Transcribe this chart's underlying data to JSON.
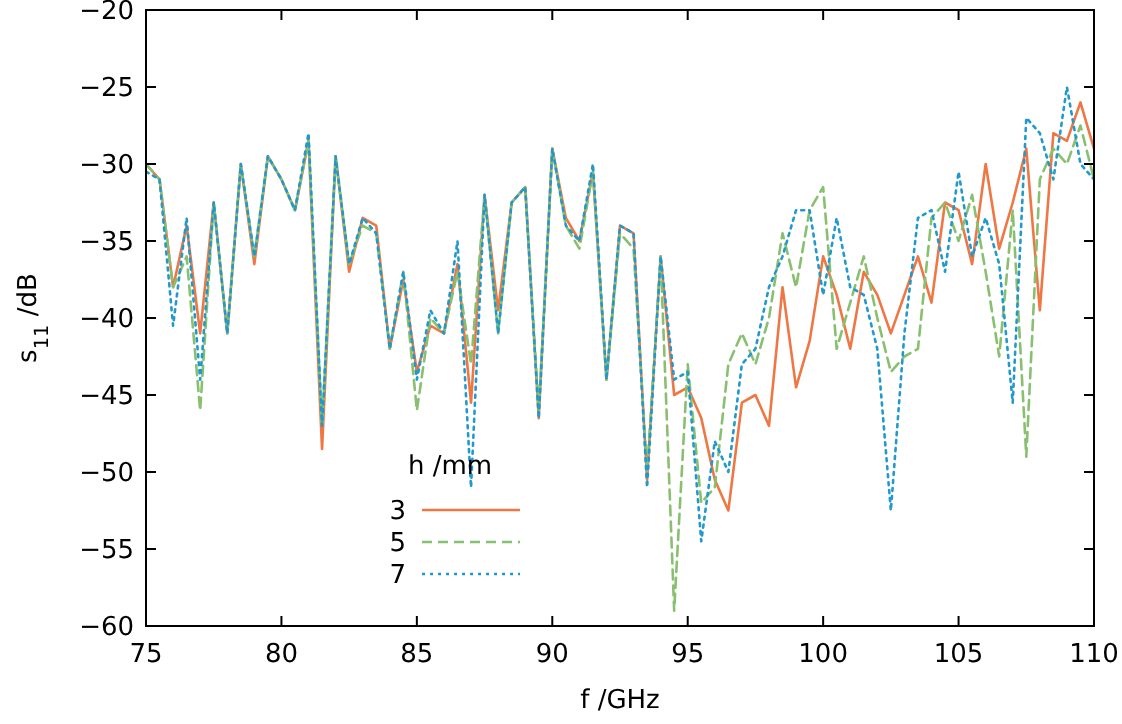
{
  "chart_data": {
    "type": "line",
    "xlabel": "f /GHz",
    "ylabel": "s$_{11}$ /dB",
    "legend_title": "h /mm",
    "legend": "bottom left",
    "grid": false,
    "x": [
      75,
      75.5,
      76,
      76.5,
      77,
      77.5,
      78,
      78.5,
      79,
      79.5,
      80,
      80.5,
      81,
      81.5,
      82,
      82.5,
      83,
      83.5,
      84,
      84.5,
      85,
      85.5,
      86,
      86.5,
      87,
      87.5,
      88,
      88.5,
      89,
      89.5,
      90,
      90.5,
      91,
      91.5,
      92,
      92.5,
      93,
      93.5,
      94,
      94.5,
      95,
      95.5,
      96,
      96.5,
      97,
      97.5,
      98,
      98.5,
      99,
      99.5,
      100,
      100.5,
      101,
      101.5,
      102,
      102.5,
      103,
      103.5,
      104,
      104.5,
      105,
      105.5,
      106,
      106.5,
      107,
      107.5,
      108,
      108.5,
      109,
      109.5,
      110
    ],
    "xlim": [
      75,
      110
    ],
    "xticks": [
      75,
      80,
      85,
      90,
      95,
      100,
      105,
      110
    ],
    "ylim": [
      -60,
      -20
    ],
    "yticks": [
      {
        "value": -60,
        "label": "−60"
      },
      {
        "value": -55,
        "label": "−55"
      },
      {
        "value": -50,
        "label": "−50"
      },
      {
        "value": -45,
        "label": "−45"
      },
      {
        "value": -40,
        "label": "−40"
      },
      {
        "value": -35,
        "label": "−35"
      },
      {
        "value": -30,
        "label": "−30"
      },
      {
        "value": -25,
        "label": "−25"
      },
      {
        "value": -20,
        "label": "−20"
      }
    ],
    "series": [
      {
        "name": "3",
        "color": "#ee7744",
        "line_style": "solid",
        "values": [
          -30,
          -31,
          -38,
          -34,
          -41,
          -32.5,
          -41,
          -30,
          -36.5,
          -29.5,
          -31,
          -33,
          -28.5,
          -48.5,
          -29.5,
          -37,
          -33.5,
          -34,
          -42,
          -37.5,
          -43.5,
          -40.5,
          -41,
          -36.5,
          -45.5,
          -32,
          -39.5,
          -32.5,
          -31.5,
          -46.5,
          -29,
          -33.5,
          -35,
          -30.5,
          -44,
          -34,
          -34.5,
          -50.5,
          -36,
          -45,
          -44.5,
          -46.5,
          -50.5,
          -52.5,
          -45.5,
          -45,
          -47,
          -38,
          -44.5,
          -41.5,
          -36,
          -38.5,
          -42,
          -37,
          -38.5,
          -41,
          -38.5,
          -36,
          -39,
          -32.5,
          -33,
          -36.5,
          -30,
          -35.5,
          -32.5,
          -29,
          -39.5,
          -28,
          -28.5,
          -26,
          -29
        ]
      },
      {
        "name": "5",
        "color": "#88c070",
        "line_style": "dashed",
        "values": [
          -30,
          -31,
          -38,
          -36,
          -46,
          -32.5,
          -41,
          -30,
          -36,
          -29.5,
          -31,
          -33,
          -28.5,
          -47,
          -29.5,
          -36.5,
          -34,
          -34.5,
          -42,
          -37,
          -46,
          -40,
          -41,
          -37,
          -43,
          -32,
          -41,
          -32.5,
          -31.5,
          -46,
          -29,
          -34,
          -35.5,
          -30.5,
          -44,
          -34.5,
          -35.5,
          -50,
          -36,
          -59,
          -43,
          -52,
          -51,
          -43,
          -41,
          -43,
          -40,
          -34.5,
          -38,
          -33,
          -31.5,
          -42,
          -39,
          -36,
          -40,
          -43.5,
          -42.5,
          -42,
          -33.5,
          -32.5,
          -35,
          -32,
          -37,
          -42.5,
          -33,
          -49,
          -31,
          -29,
          -30,
          -27.5,
          -31
        ]
      },
      {
        "name": "7",
        "color": "#2299cc",
        "line_style": "dotted",
        "values": [
          -30.5,
          -31,
          -40.5,
          -33.5,
          -44,
          -32.5,
          -41,
          -30,
          -36,
          -29.5,
          -31,
          -33,
          -28,
          -47,
          -29.5,
          -36.5,
          -33.5,
          -34.5,
          -42,
          -37,
          -44,
          -39.5,
          -41,
          -35,
          -51,
          -32,
          -41,
          -32.5,
          -31.5,
          -46.5,
          -29,
          -34,
          -35,
          -30,
          -44,
          -34,
          -34.5,
          -51,
          -36,
          -44,
          -43.5,
          -54.5,
          -48,
          -50,
          -43,
          -42,
          -38,
          -36,
          -33,
          -33,
          -38.5,
          -33.5,
          -38,
          -38.5,
          -42,
          -52.5,
          -41,
          -33.5,
          -33,
          -37,
          -30.5,
          -36,
          -33.5,
          -36.5,
          -45.5,
          -27,
          -28,
          -31,
          -25,
          -30,
          -31
        ]
      }
    ]
  }
}
